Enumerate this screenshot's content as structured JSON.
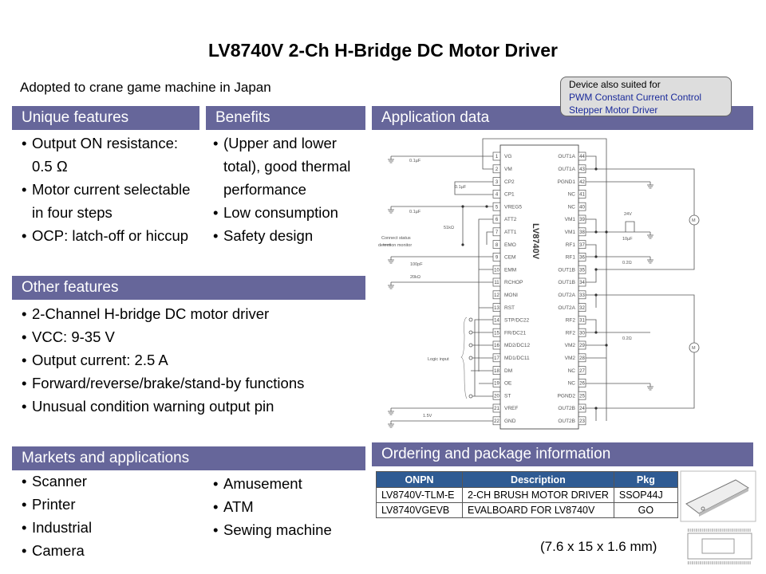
{
  "title": "LV8740V 2-Ch H-Bridge DC Motor Driver",
  "adopted": "Adopted to crane game machine in Japan",
  "callout": {
    "line1": "Device also suited for",
    "line2": "PWM Constant Current Control",
    "line3": "Stepper Motor Driver"
  },
  "unique": {
    "header": "Unique features",
    "items": [
      "Output ON resistance: 0.5 Ω",
      "Motor current selectable in four steps",
      "OCP: latch-off or hiccup"
    ]
  },
  "benefits": {
    "header": "Benefits",
    "items": [
      "(Upper and lower total), good thermal performance",
      "Low consumption",
      "Safety design"
    ]
  },
  "other": {
    "header": "Other features",
    "items": [
      "2-Channel H-bridge DC motor driver",
      "VCC: 9-35 V",
      "Output current: 2.5 A",
      "Forward/reverse/brake/stand-by functions",
      "Unusual condition warning output pin"
    ]
  },
  "markets": {
    "header": "Markets and applications",
    "col1": [
      "Scanner",
      "Printer",
      "Industrial",
      "Camera"
    ],
    "col2": [
      "Amusement",
      "ATM",
      "Sewing machine"
    ]
  },
  "application": {
    "header": "Application data",
    "chip": "LV8740V",
    "left_pins": [
      "VG",
      "VM",
      "CP2",
      "CP1",
      "VREG5",
      "ATT2",
      "ATT1",
      "EMO",
      "CEM",
      "EMM",
      "RCHOP",
      "MONI",
      "RST",
      "STP/DC22",
      "FR/DC21",
      "MD2/DC12",
      "MD1/DC11",
      "DM",
      "OE",
      "ST",
      "VREF",
      "GND"
    ],
    "right_pins": [
      "OUT1A",
      "OUT1A",
      "PGND1",
      "NC",
      "NC",
      "VM1",
      "VM1",
      "RF1",
      "RF1",
      "OUT1B",
      "OUT1B",
      "OUT2A",
      "OUT2A",
      "RF2",
      "RF2",
      "VM2",
      "VM2",
      "NC",
      "NC",
      "PGND2",
      "OUT2B",
      "OUT2B"
    ],
    "labels": {
      "c1": "0.1µF",
      "c3": "0.1µF",
      "c5": "0.1µF",
      "r51k": "51kΩ",
      "monitor1": "Connect status",
      "monitor2": "detection monitor",
      "c9": "100pF",
      "r20k": "20kΩ",
      "logic": "Logic input",
      "vref": "1.5V",
      "v24": "24V",
      "c10": "10µF",
      "rf1": "0.2Ω",
      "rf2": "0.2Ω",
      "motor": "M"
    }
  },
  "ordering": {
    "header": "Ordering and package information",
    "columns": [
      "ONPN",
      "Description",
      "Pkg"
    ],
    "rows": [
      [
        "LV8740V-TLM-E",
        "2-CH BRUSH MOTOR DRIVER",
        "SSOP44J"
      ],
      [
        "LV8740VGEVB",
        "EVALBOARD FOR LV8740V",
        "GO"
      ]
    ],
    "dims": "(7.6 x 15 x 1.6 mm)"
  },
  "colors": {
    "header_bar": "#66669a",
    "table_header": "#2f5b93",
    "callout_text": "#1a2a9a"
  }
}
